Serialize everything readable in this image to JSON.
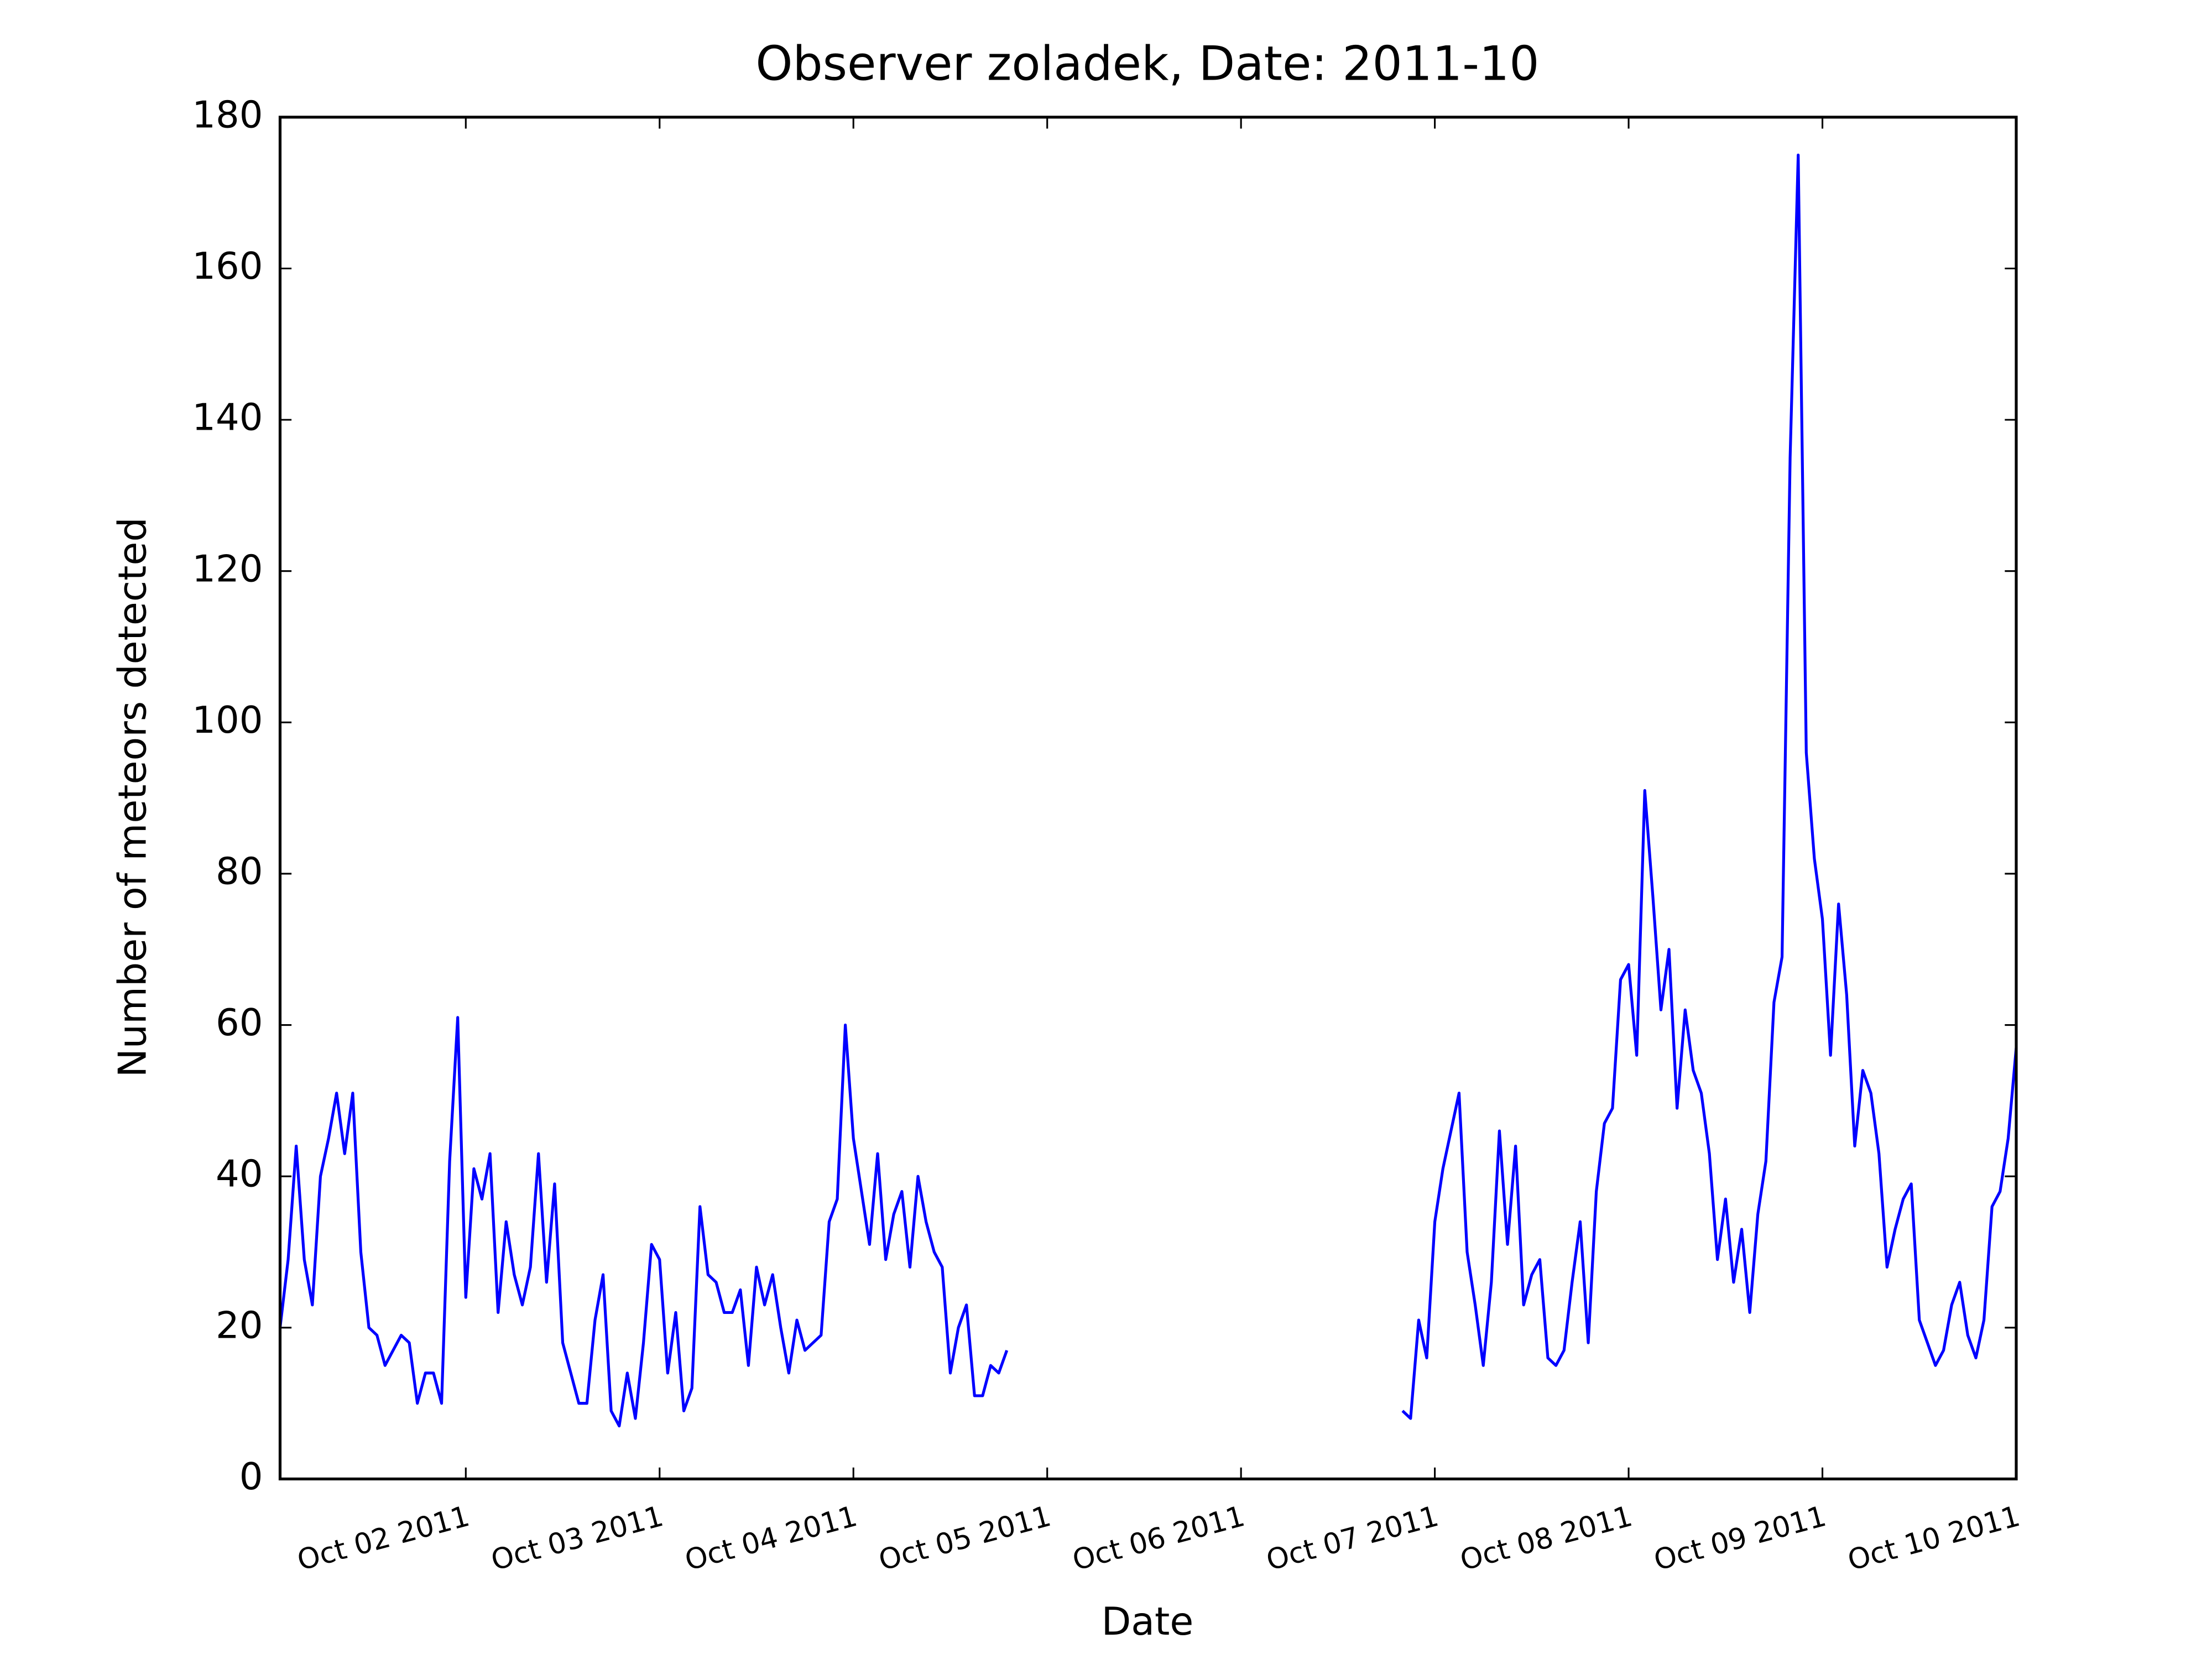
{
  "chart_data": {
    "type": "line",
    "title": "Observer zoladek, Date: 2011-10",
    "x_label": "Date",
    "y_label": "Number of meteors detected",
    "color": "#0000ff",
    "xlim": [
      1.0417,
      10
    ],
    "ylim": [
      0,
      180
    ],
    "yticks": [
      0,
      20,
      40,
      60,
      80,
      100,
      120,
      140,
      160,
      180
    ],
    "xticks": [
      {
        "value": 2,
        "label": "Oct 02 2011"
      },
      {
        "value": 3,
        "label": "Oct 03 2011"
      },
      {
        "value": 4,
        "label": "Oct 04 2011"
      },
      {
        "value": 5,
        "label": "Oct 05 2011"
      },
      {
        "value": 6,
        "label": "Oct 06 2011"
      },
      {
        "value": 7,
        "label": "Oct 07 2011"
      },
      {
        "value": 8,
        "label": "Oct 08 2011"
      },
      {
        "value": 9,
        "label": "Oct 09 2011"
      },
      {
        "value": 10,
        "label": "Oct 10 2011"
      }
    ],
    "x": [
      1.0417,
      1.0833,
      1.125,
      1.1667,
      1.2083,
      1.25,
      1.2917,
      1.3333,
      1.375,
      1.4167,
      1.4583,
      1.5,
      1.5417,
      1.5833,
      1.625,
      1.6667,
      1.7083,
      1.75,
      1.7917,
      1.8333,
      1.875,
      1.9167,
      1.9583,
      2,
      2.0417,
      2.0833,
      2.125,
      2.1667,
      2.2083,
      2.25,
      2.2917,
      2.3333,
      2.375,
      2.4167,
      2.4583,
      2.5,
      2.5417,
      2.5833,
      2.625,
      2.6667,
      2.7083,
      2.75,
      2.7917,
      2.8333,
      2.875,
      2.9167,
      2.9583,
      3,
      3.0417,
      3.0833,
      3.125,
      3.1667,
      3.2083,
      3.25,
      3.2917,
      3.3333,
      3.375,
      3.4167,
      3.4583,
      3.5,
      3.5417,
      3.5833,
      3.625,
      3.6667,
      3.7083,
      3.75,
      3.7917,
      3.8333,
      3.875,
      3.9167,
      3.9583,
      4,
      4.0417,
      4.0833,
      4.125,
      4.1667,
      4.2083,
      4.25,
      4.2917,
      4.3333,
      4.375,
      4.4167,
      4.4583,
      4.5,
      4.5417,
      4.5833,
      4.625,
      4.6667,
      4.7083,
      4.75,
      4.7917,
      4.8333,
      6.8333,
      6.875,
      6.9167,
      6.9583,
      7,
      7.0417,
      7.0833,
      7.125,
      7.1667,
      7.2083,
      7.25,
      7.2917,
      7.3333,
      7.375,
      7.4167,
      7.4583,
      7.5,
      7.5417,
      7.5833,
      7.625,
      7.6667,
      7.7083,
      7.75,
      7.7917,
      7.8333,
      7.875,
      7.9167,
      7.9583,
      8,
      8.0417,
      8.0833,
      8.125,
      8.1667,
      8.2083,
      8.25,
      8.2917,
      8.3333,
      8.375,
      8.4167,
      8.4583,
      8.5,
      8.5417,
      8.5833,
      8.625,
      8.6667,
      8.7083,
      8.75,
      8.7917,
      8.8333,
      8.875,
      8.9167,
      8.9583,
      9,
      9.0417,
      9.0833,
      9.125,
      9.1667,
      9.2083,
      9.25,
      9.2917,
      9.3333,
      9.375,
      9.4167,
      9.4583,
      9.5,
      9.5417,
      9.5833,
      9.625,
      9.6667,
      9.7083,
      9.75,
      9.7917,
      9.8333,
      9.875,
      9.9167,
      9.9583,
      10
    ],
    "values": [
      20,
      29,
      44,
      29,
      23,
      40,
      45,
      51,
      43,
      51,
      30,
      20,
      19,
      15,
      17,
      19,
      18,
      10,
      14,
      14,
      10,
      42,
      61,
      24,
      41,
      37,
      43,
      22,
      34,
      27,
      23,
      28,
      43,
      26,
      39,
      18,
      14,
      10,
      10,
      21,
      27,
      9,
      7,
      14,
      8,
      18,
      31,
      29,
      14,
      22,
      9,
      12,
      36,
      27,
      26,
      22,
      22,
      25,
      15,
      28,
      23,
      27,
      20,
      14,
      21,
      17,
      18,
      19,
      34,
      37,
      60,
      45,
      38,
      31,
      43,
      29,
      35,
      38,
      28,
      40,
      34,
      30,
      28,
      14,
      20,
      23,
      11,
      11,
      15,
      14,
      17,
      null,
      9,
      8,
      21,
      16,
      34,
      41,
      46,
      51,
      30,
      23,
      15,
      26,
      46,
      31,
      44,
      23,
      27,
      29,
      16,
      15,
      17,
      26,
      34,
      18,
      38,
      47,
      49,
      66,
      68,
      56,
      91,
      77,
      62,
      70,
      49,
      62,
      54,
      51,
      43,
      29,
      37,
      26,
      33,
      22,
      35,
      42,
      63,
      69,
      135,
      175,
      96,
      82,
      74,
      56,
      76,
      64,
      44,
      54,
      51,
      43,
      28,
      33,
      37,
      39,
      21,
      18,
      15,
      17,
      23,
      26,
      19,
      16,
      21,
      36,
      38,
      45,
      57
    ]
  }
}
